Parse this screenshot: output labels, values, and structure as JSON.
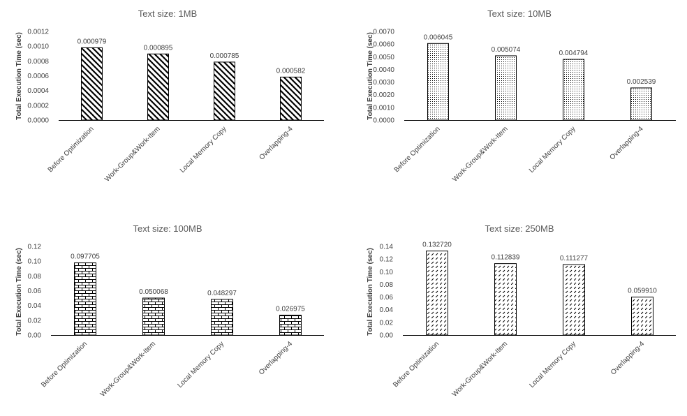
{
  "chart_data": [
    {
      "type": "bar",
      "title": "Text size: 1MB",
      "ylabel": "Total Execution Time (sec)",
      "xlabel": "",
      "categories": [
        "Before Optimization",
        "Work-Group&Work-Item",
        "Local Memory Copy",
        "Overlapping-4"
      ],
      "values": [
        0.000979,
        0.000895,
        0.000785,
        0.000582
      ],
      "data_labels": [
        "0.000979",
        "0.000895",
        "0.000785",
        "0.000582"
      ],
      "ylim": [
        0,
        0.0012
      ],
      "yticks": [
        "0.0000",
        "0.0002",
        "0.0004",
        "0.0006",
        "0.0008",
        "0.0010",
        "0.0012"
      ],
      "pattern": "wide-diagonal",
      "grid": false,
      "legend": "none"
    },
    {
      "type": "bar",
      "title": "Text size: 10MB",
      "ylabel": "Total Execution Time (sec)",
      "xlabel": "",
      "categories": [
        "Before Optimization",
        "Work-Group&Work-Item",
        "Local Memory Copy",
        "Overlapping-4"
      ],
      "values": [
        0.006045,
        0.005074,
        0.004794,
        0.002539
      ],
      "data_labels": [
        "0.006045",
        "0.005074",
        "0.004794",
        "0.002539"
      ],
      "ylim": [
        0,
        0.007
      ],
      "yticks": [
        "0.0000",
        "0.0010",
        "0.0020",
        "0.0030",
        "0.0040",
        "0.0050",
        "0.0060",
        "0.0070"
      ],
      "pattern": "dots",
      "grid": false,
      "legend": "none"
    },
    {
      "type": "bar",
      "title": "Text size: 100MB",
      "ylabel": "Total Execution Time (sec)",
      "xlabel": "",
      "categories": [
        "Before Optimization",
        "Work-Group&Work-Item",
        "Local Memory Copy",
        "Overlapping-4"
      ],
      "values": [
        0.097705,
        0.050068,
        0.048297,
        0.026975
      ],
      "data_labels": [
        "0.097705",
        "0.050068",
        "0.048297",
        "0.026975"
      ],
      "ylim": [
        0,
        0.12
      ],
      "yticks": [
        "0.00",
        "0.02",
        "0.04",
        "0.06",
        "0.08",
        "0.10",
        "0.12"
      ],
      "pattern": "brick",
      "grid": false,
      "legend": "none"
    },
    {
      "type": "bar",
      "title": "Text size: 250MB",
      "ylabel": "Total Execution Time (sec)",
      "xlabel": "",
      "categories": [
        "Before Optimization",
        "Work-Group&Work-Item",
        "Local Memory Copy",
        "Overlapping-4"
      ],
      "values": [
        0.13272,
        0.112839,
        0.111277,
        0.05991
      ],
      "data_labels": [
        "0.132720",
        "0.112839",
        "0.111277",
        "0.059910"
      ],
      "ylim": [
        0,
        0.14
      ],
      "yticks": [
        "0.00",
        "0.02",
        "0.04",
        "0.06",
        "0.08",
        "0.10",
        "0.12",
        "0.14"
      ],
      "pattern": "dashed-diagonal",
      "grid": false,
      "legend": "none"
    }
  ],
  "colors": {
    "bar_stroke": "#000000",
    "axis": "#000000",
    "text": "#404040",
    "title": "#595959",
    "background": "#ffffff"
  }
}
